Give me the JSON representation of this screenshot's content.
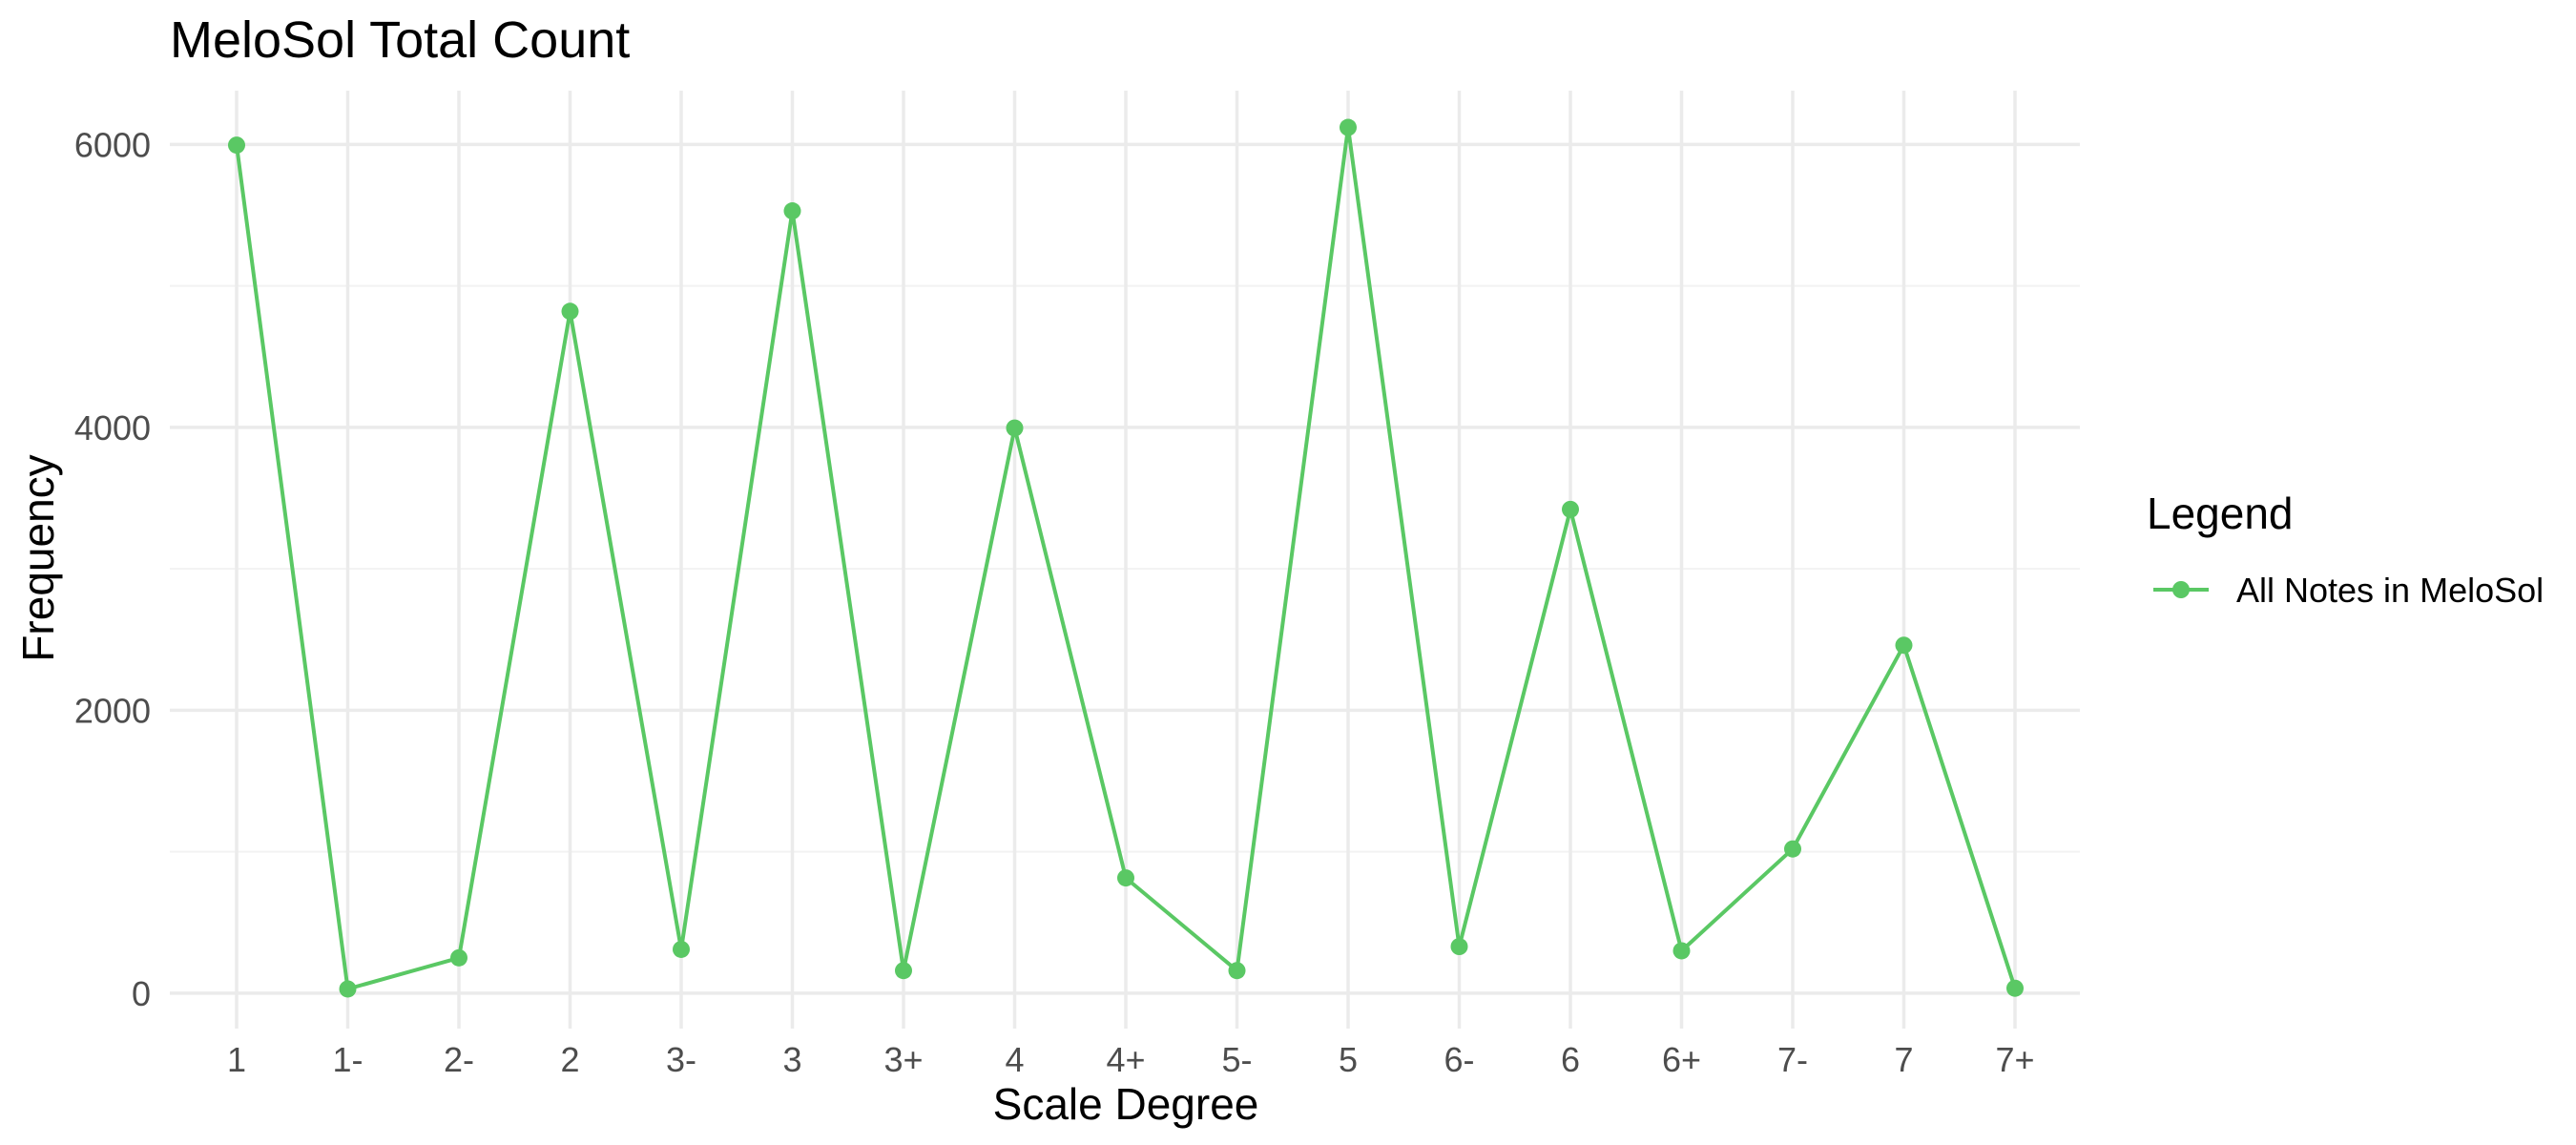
{
  "chart_data": {
    "type": "line",
    "title": "MeloSol Total Count",
    "xlabel": "Scale Degree",
    "ylabel": "Frequency",
    "categories": [
      "1",
      "1-",
      "2-",
      "2",
      "3-",
      "3",
      "3+",
      "4",
      "4+",
      "5-",
      "5",
      "6-",
      "6",
      "6+",
      "7-",
      "7",
      "7+"
    ],
    "ylim": [
      -250,
      6380
    ],
    "yticks": [
      0,
      2000,
      4000,
      6000
    ],
    "ytick_labels": [
      "0",
      "2000",
      "4000",
      "6000"
    ],
    "grid": true,
    "legend": {
      "title": "Legend",
      "position": "right"
    },
    "series": [
      {
        "name": "All Notes in MeloSol",
        "color": "#5ac864",
        "values": [
          5995,
          30,
          250,
          4820,
          310,
          5530,
          160,
          3995,
          815,
          160,
          6120,
          330,
          3420,
          300,
          1020,
          2460,
          35
        ]
      }
    ]
  }
}
